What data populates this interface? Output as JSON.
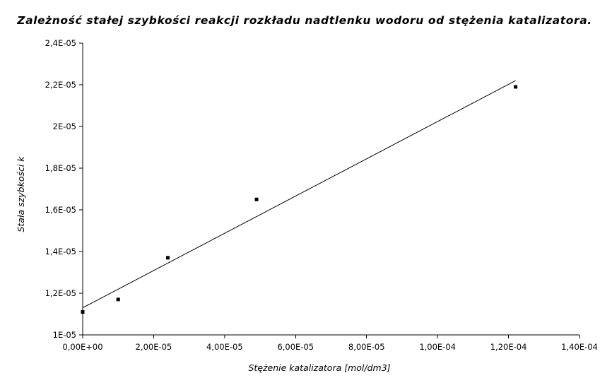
{
  "chart_data": {
    "type": "scatter",
    "title": "Zależność stałej szybkości reakcji rozkładu nadtlenku wodoru od stężenia katalizatora.",
    "xlabel": "Stężenie katalizatora [mol/dm3]",
    "ylabel": "Stała szybkości k",
    "xlim": [
      0,
      0.00014
    ],
    "ylim": [
      1e-05,
      2.4e-05
    ],
    "x_ticks": [
      0,
      2e-05,
      4e-05,
      6e-05,
      8e-05,
      0.0001,
      0.00012,
      0.00014
    ],
    "x_tick_labels": [
      "0,00E+00",
      "2,00E-05",
      "4,00E-05",
      "6,00E-05",
      "8,00E-05",
      "1,00E-04",
      "1,20E-04",
      "1,40E-04"
    ],
    "y_ticks": [
      1e-05,
      1.2e-05,
      1.4e-05,
      1.6e-05,
      1.8e-05,
      2e-05,
      2.2e-05,
      2.4e-05
    ],
    "y_tick_labels": [
      "1E-05",
      "1,2E-05",
      "1,4E-05",
      "1,6E-05",
      "1,8E-05",
      "2E-05",
      "2,2E-05",
      "2,4E-05"
    ],
    "grid": false,
    "legend": "none",
    "series": [
      {
        "x": [
          0,
          1e-05,
          2.4e-05,
          4.9e-05,
          0.000122
        ],
        "y": [
          1.11e-05,
          1.17e-05,
          1.37e-05,
          1.65e-05,
          2.19e-05
        ],
        "marker_color": "#000000"
      }
    ],
    "trendline": {
      "type": "linear",
      "x": [
        0,
        0.000122
      ],
      "y": [
        1.13e-05,
        2.22e-05
      ],
      "color": "#000000"
    }
  }
}
